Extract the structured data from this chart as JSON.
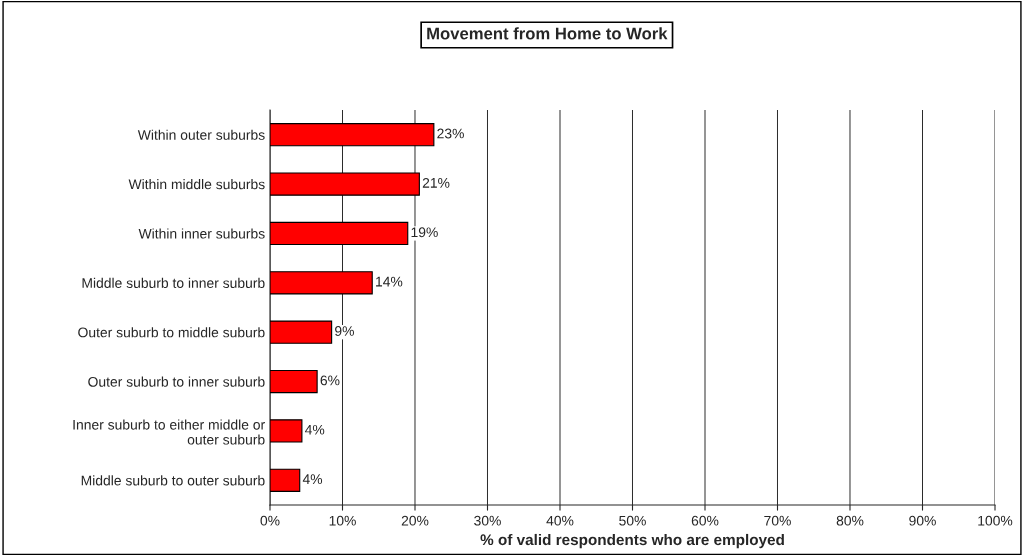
{
  "chart_data": {
    "type": "bar",
    "orientation": "horizontal",
    "title": "Movement from Home to Work",
    "xlabel": "% of valid respondents who are employed",
    "categories": [
      "Within outer suburbs",
      "Within middle suburbs",
      "Within inner suburbs",
      "Middle suburb to inner suburb",
      "Outer suburb to middle suburb",
      "Outer suburb to inner suburb",
      "Inner suburb to either middle or\nouter suburb",
      "Middle suburb to outer suburb"
    ],
    "values": [
      22.6,
      20.6,
      19.0,
      14.1,
      8.5,
      6.5,
      4.4,
      4.1
    ],
    "value_labels": [
      "23%",
      "21%",
      "19%",
      "14%",
      "9%",
      "6%",
      "4%",
      "4%"
    ],
    "color": "#ff0000",
    "xlim": [
      0,
      100
    ],
    "xticks": [
      {
        "value": 0,
        "label": "0%"
      },
      {
        "value": 10,
        "label": "10%"
      },
      {
        "value": 20,
        "label": "20%"
      },
      {
        "value": 30,
        "label": "30%"
      },
      {
        "value": 40,
        "label": "40%"
      },
      {
        "value": 50,
        "label": "50%"
      },
      {
        "value": 60,
        "label": "60%"
      },
      {
        "value": 70,
        "label": "70%"
      },
      {
        "value": 80,
        "label": "80%"
      },
      {
        "value": 90,
        "label": "90%"
      },
      {
        "value": 100,
        "label": "100%"
      }
    ],
    "grid": "x",
    "legend": false
  }
}
